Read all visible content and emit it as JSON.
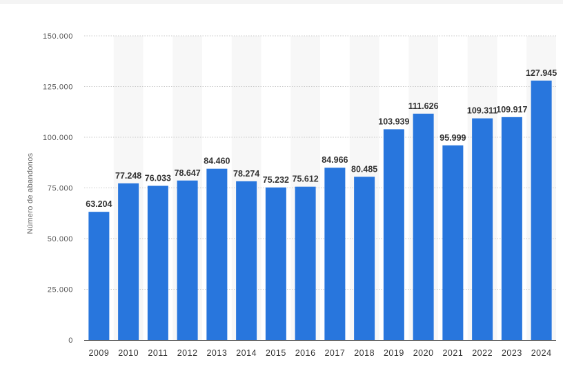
{
  "chart_data": {
    "type": "bar",
    "categories": [
      "2009",
      "2010",
      "2011",
      "2012",
      "2013",
      "2014",
      "2015",
      "2016",
      "2017",
      "2018",
      "2019",
      "2020",
      "2021",
      "2022",
      "2023",
      "2024"
    ],
    "values": [
      63204,
      77248,
      76033,
      78647,
      84460,
      78274,
      75232,
      75612,
      84966,
      80485,
      103939,
      111626,
      95999,
      109311,
      109917,
      127945
    ],
    "value_labels": [
      "63.204",
      "77.248",
      "76.033",
      "78.647",
      "84.460",
      "78.274",
      "75.232",
      "75.612",
      "84.966",
      "80.485",
      "103.939",
      "111.626",
      "95.999",
      "109.311",
      "109.917",
      "127.945"
    ],
    "title": "",
    "xlabel": "",
    "ylabel": "Número de abandonos",
    "ylim": [
      0,
      150000
    ],
    "yticks": [
      0,
      25000,
      50000,
      75000,
      100000,
      125000,
      150000
    ],
    "ytick_labels": [
      "0",
      "25.000",
      "50.000",
      "75.000",
      "100.000",
      "125.000",
      "150.000"
    ],
    "grid": true,
    "bar_color": "#2876dd",
    "band_color": "#f7f7f7",
    "legend": "none"
  }
}
